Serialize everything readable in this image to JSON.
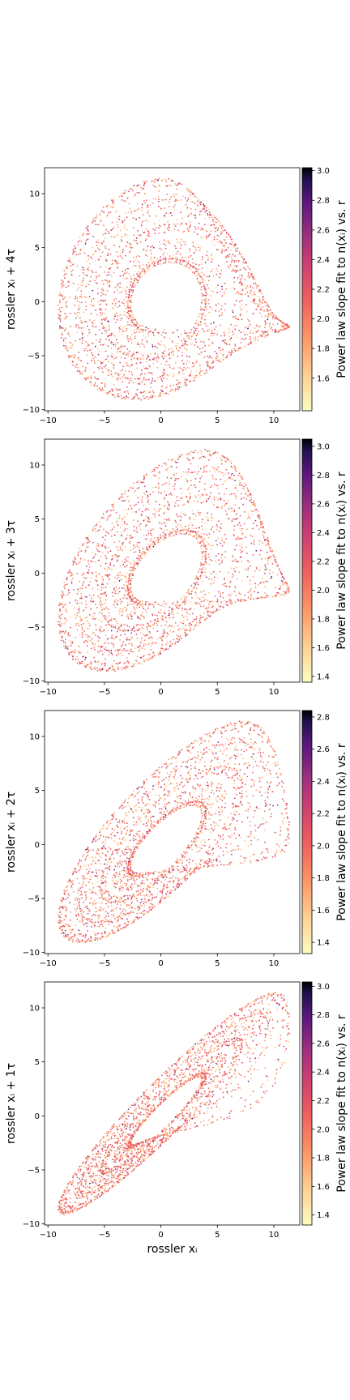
{
  "colormap": "magma_r",
  "chart_data": [
    {
      "type": "scatter",
      "title": "",
      "xlabel": "",
      "ylabel": "rossler x_i + 4τ",
      "xlim": [
        -10.3,
        12.3
      ],
      "ylim": [
        -10.1,
        12.4
      ],
      "xticks": [
        -10,
        -5,
        0,
        5,
        10
      ],
      "yticks": [
        -10,
        -5,
        0,
        5,
        10
      ],
      "grid": false,
      "colorbar": {
        "label": "Power law slope fit to n(x_i) vs. r",
        "range": [
          1.38,
          3.02
        ],
        "ticks": [
          1.6,
          1.8,
          2.0,
          2.2,
          2.4,
          2.6,
          2.8,
          3.0
        ]
      },
      "description": "Rössler attractor delay embedding, lag 4τ; points coloured by power-law slope"
    },
    {
      "type": "scatter",
      "title": "",
      "xlabel": "",
      "ylabel": "rossler x_i + 3τ",
      "xlim": [
        -10.3,
        12.3
      ],
      "ylim": [
        -10.1,
        12.4
      ],
      "xticks": [
        -10,
        -5,
        0,
        5,
        10
      ],
      "yticks": [
        -10,
        -5,
        0,
        5,
        10
      ],
      "grid": false,
      "colorbar": {
        "label": "Power law slope fit to n(x_i) vs. r",
        "range": [
          1.36,
          3.05
        ],
        "ticks": [
          1.4,
          1.6,
          1.8,
          2.0,
          2.2,
          2.4,
          2.6,
          2.8,
          3.0
        ]
      },
      "description": "Rössler attractor delay embedding, lag 3τ; points coloured by power-law slope"
    },
    {
      "type": "scatter",
      "title": "",
      "xlabel": "",
      "ylabel": "rossler x_i + 2τ",
      "xlim": [
        -10.3,
        12.3
      ],
      "ylim": [
        -10.1,
        12.4
      ],
      "xticks": [
        -10,
        -5,
        0,
        5,
        10
      ],
      "yticks": [
        -10,
        -5,
        0,
        5,
        10
      ],
      "grid": false,
      "colorbar": {
        "label": "Power law slope fit to n(x_i) vs. r",
        "range": [
          1.33,
          2.84
        ],
        "ticks": [
          1.4,
          1.6,
          1.8,
          2.0,
          2.2,
          2.4,
          2.6,
          2.8
        ]
      },
      "description": "Rössler attractor delay embedding, lag 2τ; points coloured by power-law slope"
    },
    {
      "type": "scatter",
      "title": "",
      "xlabel": "rossler x_i",
      "ylabel": "rossler x_i + 1τ",
      "xlim": [
        -10.3,
        12.3
      ],
      "ylim": [
        -10.1,
        12.4
      ],
      "xticks": [
        -10,
        -5,
        0,
        5,
        10
      ],
      "yticks": [
        -10,
        -5,
        0,
        5,
        10
      ],
      "grid": false,
      "colorbar": {
        "label": "Power law slope fit to n(x_i) vs. r",
        "range": [
          1.33,
          3.03
        ],
        "ticks": [
          1.4,
          1.6,
          1.8,
          2.0,
          2.2,
          2.4,
          2.6,
          2.8,
          3.0
        ]
      },
      "description": "Rössler attractor delay embedding, lag 1τ; points coloured by power-law slope"
    }
  ]
}
